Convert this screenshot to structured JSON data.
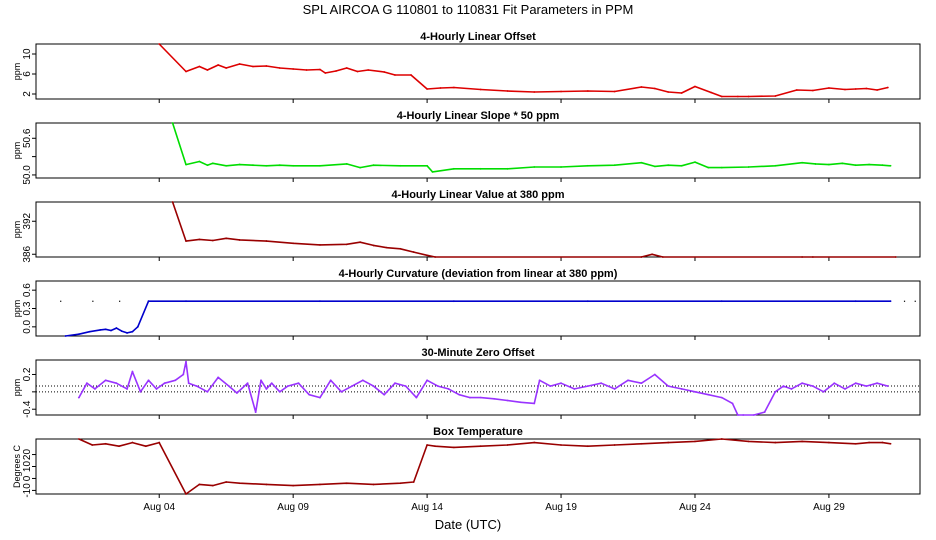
{
  "title": "SPL    AIRCOA G    110801 to 110831    Fit Parameters in PPM",
  "xlabel": "Date (UTC)",
  "x_ticks": [
    {
      "label": "Aug 04",
      "day": 4
    },
    {
      "label": "Aug 09",
      "day": 9
    },
    {
      "label": "Aug 14",
      "day": 14
    },
    {
      "label": "Aug 19",
      "day": 19
    },
    {
      "label": "Aug 24",
      "day": 24
    },
    {
      "label": "Aug 29",
      "day": 29
    }
  ],
  "chart_data": [
    {
      "type": "line",
      "title": "4-Hourly Linear Offset",
      "ylabel": "ppm",
      "y_ticks": [
        2,
        6,
        10
      ],
      "ylim": [
        1,
        12
      ],
      "color": "#dd0000",
      "x": [
        4.0,
        5.0,
        5.5,
        5.8,
        6.2,
        6.5,
        7.0,
        7.5,
        8.0,
        8.5,
        9.0,
        9.5,
        10.0,
        10.2,
        10.6,
        11.0,
        11.4,
        11.8,
        12.4,
        12.8,
        13.4,
        14.0,
        14.5,
        15.0,
        16.0,
        17.0,
        18.0,
        19.0,
        20.0,
        21.0,
        22.0,
        22.5,
        23.0,
        23.5,
        24.0,
        24.6,
        25.0,
        25.6,
        26.0,
        27.0,
        27.8,
        28.4,
        29.0,
        29.6,
        30.0,
        30.4,
        30.8,
        31.2
      ],
      "y": [
        12.0,
        6.5,
        7.5,
        6.8,
        7.8,
        7.2,
        8.0,
        7.5,
        7.6,
        7.2,
        7.0,
        6.8,
        6.9,
        6.2,
        6.6,
        7.2,
        6.5,
        6.8,
        6.4,
        5.8,
        5.8,
        3.0,
        3.2,
        3.3,
        2.9,
        2.6,
        2.4,
        2.5,
        2.6,
        2.5,
        3.4,
        3.1,
        2.4,
        2.2,
        3.5,
        2.3,
        1.5,
        1.5,
        1.5,
        1.6,
        2.8,
        2.7,
        3.2,
        2.9,
        3.0,
        3.1,
        2.8,
        3.3
      ]
    },
    {
      "type": "line",
      "title": "4-Hourly Linear Slope * 50 ppm",
      "ylabel": "ppm",
      "y_ticks": [
        50.0,
        50.3,
        50.6
      ],
      "y_tick_labels": [
        "50.0",
        "",
        "50.6"
      ],
      "ylim": [
        49.95,
        50.85
      ],
      "color": "#00dd00",
      "x": [
        4.5,
        5.0,
        5.5,
        5.8,
        6.0,
        6.5,
        7.0,
        7.5,
        8.0,
        8.5,
        9.0,
        10.0,
        11.0,
        11.5,
        12.0,
        13.0,
        14.0,
        14.2,
        15.0,
        16.0,
        17.0,
        18.0,
        19.0,
        20.0,
        21.0,
        22.0,
        22.5,
        23.0,
        23.5,
        24.0,
        24.5,
        25.0,
        26.0,
        27.0,
        28.0,
        28.5,
        29.0,
        29.5,
        30.0,
        30.5,
        31.0,
        31.3
      ],
      "y": [
        50.85,
        50.17,
        50.22,
        50.16,
        50.19,
        50.15,
        50.17,
        50.16,
        50.15,
        50.16,
        50.15,
        50.15,
        50.18,
        50.12,
        50.16,
        50.15,
        50.15,
        50.05,
        50.1,
        50.1,
        50.1,
        50.13,
        50.13,
        50.15,
        50.16,
        50.2,
        50.14,
        50.16,
        50.15,
        50.21,
        50.12,
        50.12,
        50.13,
        50.15,
        50.2,
        50.18,
        50.17,
        50.19,
        50.16,
        50.17,
        50.16,
        50.15
      ]
    },
    {
      "type": "line",
      "title": "4-Hourly Linear Value at 380 ppm",
      "ylabel": "ppm",
      "y_ticks": [
        386,
        392
      ],
      "ylim": [
        385.5,
        395.5
      ],
      "color": "#990000",
      "x": [
        4.5,
        5.0,
        5.5,
        6.0,
        6.5,
        7.0,
        8.0,
        9.0,
        10.0,
        11.0,
        11.5,
        12.0,
        12.5,
        13.0,
        13.5,
        14.0,
        14.3,
        22.0,
        22.4,
        22.8,
        28.0,
        28.4,
        31.5
      ],
      "y": [
        395.5,
        388.4,
        388.7,
        388.5,
        388.9,
        388.6,
        388.4,
        388.0,
        387.7,
        387.8,
        388.2,
        387.6,
        387.2,
        387.0,
        386.4,
        385.8,
        385.5,
        385.5,
        386.0,
        385.5,
        385.5,
        385.5,
        385.5
      ]
    },
    {
      "type": "line",
      "title": "4-Hourly Curvature (deviation from linear at 380 ppm)",
      "ylabel": "ppm",
      "y_ticks": [
        0.0,
        0.3,
        0.6
      ],
      "y_tick_labels": [
        "0.0",
        "0.3",
        "0.6"
      ],
      "ylim": [
        -0.15,
        0.75
      ],
      "color": "#0000cc",
      "x": [
        0.5,
        1.0,
        1.4,
        1.8,
        2.0,
        2.2,
        2.4,
        2.6,
        2.8,
        3.0,
        3.2,
        3.6,
        5.0,
        10.0,
        15.0,
        20.0,
        25.0,
        30.0,
        31.3
      ],
      "y": [
        -0.15,
        -0.12,
        -0.08,
        -0.05,
        -0.04,
        -0.06,
        -0.02,
        -0.07,
        -0.1,
        -0.08,
        0.0,
        0.42,
        0.42,
        0.42,
        0.42,
        0.42,
        0.42,
        0.42,
        0.42
      ]
    },
    {
      "type": "line",
      "title": "30-Minute Zero Offset",
      "ylabel": "ppm",
      "y_ticks": [
        -0.4,
        0.2
      ],
      "y_tick_labels": [
        "-0.4",
        "0.2"
      ],
      "y_mid_tick": -0.1,
      "ylim": [
        -0.5,
        0.45
      ],
      "ref_lines": [
        0.0,
        -0.1
      ],
      "color": "#9933ff",
      "x": [
        1.0,
        1.3,
        1.6,
        2.0,
        2.4,
        2.8,
        3.0,
        3.3,
        3.6,
        3.9,
        4.2,
        4.6,
        4.9,
        5.0,
        5.1,
        5.4,
        5.8,
        6.2,
        6.6,
        6.9,
        7.3,
        7.6,
        7.8,
        8.0,
        8.2,
        8.5,
        8.8,
        9.2,
        9.6,
        10.0,
        10.4,
        10.8,
        11.2,
        11.6,
        12.0,
        12.4,
        12.8,
        13.2,
        13.6,
        14.0,
        14.4,
        14.8,
        15.2,
        15.6,
        16.0,
        16.5,
        17.0,
        17.5,
        18.0,
        18.2,
        18.6,
        19.0,
        19.5,
        20.0,
        20.5,
        21.0,
        21.5,
        22.0,
        22.5,
        23.0,
        23.5,
        24.0,
        24.5,
        25.0,
        25.4,
        25.6,
        25.8,
        26.2,
        26.6,
        27.0,
        27.3,
        27.6,
        28.0,
        28.4,
        28.8,
        29.2,
        29.6,
        30.0,
        30.4,
        30.8,
        31.2
      ],
      "y": [
        -0.2,
        0.05,
        -0.05,
        0.1,
        0.05,
        -0.05,
        0.25,
        -0.1,
        0.1,
        -0.05,
        0.05,
        0.1,
        0.2,
        0.42,
        0.05,
        0.0,
        -0.1,
        0.15,
        0.0,
        -0.12,
        0.05,
        -0.45,
        0.1,
        -0.05,
        0.05,
        -0.1,
        0.0,
        0.05,
        -0.15,
        -0.2,
        0.1,
        -0.1,
        0.0,
        0.1,
        0.0,
        -0.15,
        0.05,
        0.0,
        -0.2,
        0.1,
        0.0,
        -0.05,
        -0.15,
        -0.2,
        -0.2,
        -0.22,
        -0.25,
        -0.28,
        -0.3,
        0.1,
        0.0,
        0.05,
        -0.05,
        0.0,
        0.05,
        -0.05,
        0.1,
        0.05,
        0.2,
        0.0,
        -0.05,
        -0.1,
        -0.15,
        -0.2,
        -0.3,
        -0.5,
        -0.5,
        -0.5,
        -0.45,
        -0.1,
        0.0,
        -0.05,
        0.05,
        0.0,
        -0.1,
        0.05,
        -0.05,
        0.05,
        0.0,
        0.05,
        0.0
      ]
    },
    {
      "type": "line",
      "title": "Box Temperature",
      "ylabel": "Degrees C",
      "y_ticks": [
        -10,
        0,
        10,
        20
      ],
      "y_tick_labels": [
        "-10",
        "0",
        "10",
        "20"
      ],
      "ylim": [
        -13,
        33
      ],
      "color": "#990000",
      "x": [
        1.0,
        1.5,
        2.0,
        2.5,
        3.0,
        3.5,
        4.0,
        5.0,
        5.5,
        6.0,
        6.5,
        7.0,
        8.0,
        9.0,
        10.0,
        11.0,
        12.0,
        13.0,
        13.5,
        14.0,
        14.3,
        15.0,
        16.0,
        17.0,
        18.0,
        19.0,
        20.0,
        21.0,
        22.0,
        23.0,
        24.0,
        25.0,
        26.0,
        27.0,
        28.0,
        29.0,
        30.0,
        30.5,
        31.0,
        31.3
      ],
      "y": [
        33,
        28,
        29,
        27,
        30,
        27,
        30,
        -13,
        -5,
        -6,
        -3,
        -4,
        -5,
        -6,
        -5,
        -4,
        -5,
        -4,
        -3,
        28,
        27,
        26,
        27,
        28,
        30,
        28,
        27,
        28,
        29,
        30,
        31,
        33,
        31,
        30,
        31,
        30,
        29,
        30,
        30,
        29
      ]
    }
  ]
}
